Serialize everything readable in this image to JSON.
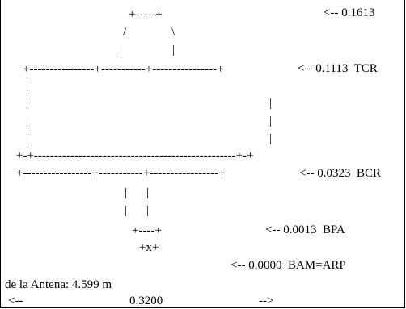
{
  "labels": {
    "top": "<-- 0.1613",
    "tcr": "<-- 0.1113  TCR",
    "bcr": "<-- 0.0323  BCR",
    "bpa": "<-- 0.0013  BPA",
    "bam": "<-- 0.0000  BAM=ARP"
  },
  "arp_mark": "+x+",
  "footer": {
    "height_line": "de la Antena: 4.599 m",
    "width_left_arrow": "<--",
    "width_value": "0.3200",
    "width_right_arrow": "-->"
  }
}
